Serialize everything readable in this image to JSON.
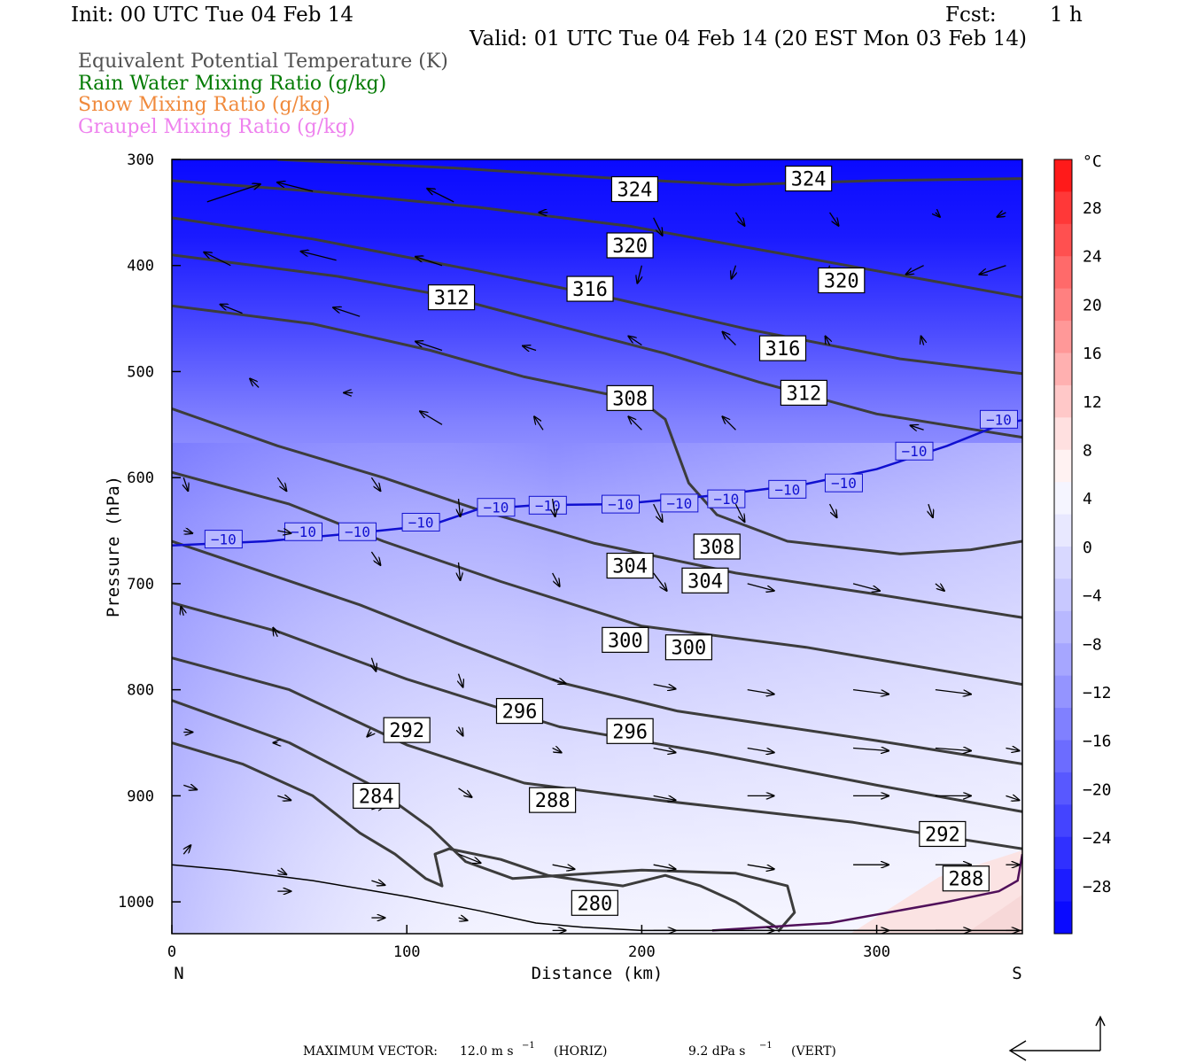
{
  "header": {
    "init": "Init: 00 UTC Tue 04 Feb 14",
    "fcst_label": "Fcst:",
    "fcst_value": "1 h",
    "valid": "Valid: 01 UTC Tue 04 Feb 14 (20 EST Mon 03 Feb 14)"
  },
  "legend": [
    {
      "label": "Equivalent Potential Temperature (K)",
      "color": "#505050"
    },
    {
      "label": "Rain Water Mixing Ratio (g/kg)",
      "color": "#007a00"
    },
    {
      "label": "Snow Mixing Ratio (g/kg)",
      "color": "#f08a3c"
    },
    {
      "label": "Graupel Mixing Ratio (g/kg)",
      "color": "#ee82ee"
    }
  ],
  "chart_data": {
    "type": "cross-section",
    "xlabel": "Distance (km)",
    "ylabel": "Pressure (hPa)",
    "x_ticks": [
      0,
      100,
      200,
      300
    ],
    "x_range": [
      0,
      362
    ],
    "y_ticks": [
      300,
      400,
      500,
      600,
      700,
      800,
      900,
      1000
    ],
    "y_range": [
      300,
      1030
    ],
    "left_end": "N",
    "right_end": "S",
    "colorbar": {
      "unit": "°C",
      "labels": [
        "28",
        "24",
        "20",
        "16",
        "12",
        "8",
        "4",
        "0",
        "−4",
        "−8",
        "−12",
        "−16",
        "−20",
        "−24",
        "−28"
      ],
      "colors": [
        "#ff1a1a",
        "#ff3838",
        "#ff5050",
        "#ff6a6a",
        "#ff8080",
        "#ff9898",
        "#ffb0b0",
        "#ffc8c8",
        "#ffe0e0",
        "#fff2f2",
        "#f5f5ff",
        "#e8e8ff",
        "#d8d8ff",
        "#c8c8ff",
        "#b8b8ff",
        "#a6a6ff",
        "#9494ff",
        "#8080ff",
        "#6c6cff",
        "#5858ff",
        "#4444ff",
        "#3030ff",
        "#1c1cff",
        "#0a0aff"
      ]
    },
    "theta_e_contours": [
      {
        "value": 324,
        "points": [
          [
            45,
            300
          ],
          [
            120,
            308
          ],
          [
            190,
            318
          ],
          [
            240,
            324
          ],
          [
            300,
            320
          ],
          [
            362,
            318
          ]
        ]
      },
      {
        "value": 320,
        "points": [
          [
            0,
            320
          ],
          [
            60,
            330
          ],
          [
            130,
            345
          ],
          [
            195,
            363
          ],
          [
            270,
            393
          ],
          [
            362,
            430
          ]
        ]
      },
      {
        "value": 316,
        "points": [
          [
            0,
            355
          ],
          [
            60,
            375
          ],
          [
            130,
            405
          ],
          [
            190,
            432
          ],
          [
            245,
            460
          ],
          [
            310,
            488
          ],
          [
            362,
            502
          ]
        ]
      },
      {
        "value": 312,
        "points": [
          [
            0,
            390
          ],
          [
            70,
            410
          ],
          [
            115,
            428
          ],
          [
            170,
            460
          ],
          [
            210,
            483
          ],
          [
            250,
            510
          ],
          [
            300,
            540
          ],
          [
            362,
            562
          ]
        ]
      },
      {
        "value": 308,
        "points": [
          [
            0,
            438
          ],
          [
            60,
            455
          ],
          [
            110,
            480
          ],
          [
            150,
            505
          ],
          [
            200,
            528
          ],
          [
            210,
            545
          ],
          [
            220,
            605
          ],
          [
            232,
            635
          ],
          [
            262,
            660
          ],
          [
            310,
            672
          ],
          [
            340,
            668
          ],
          [
            362,
            660
          ]
        ]
      },
      {
        "value": 304,
        "points": [
          [
            0,
            535
          ],
          [
            45,
            570
          ],
          [
            90,
            600
          ],
          [
            130,
            630
          ],
          [
            180,
            662
          ],
          [
            240,
            690
          ],
          [
            300,
            710
          ],
          [
            362,
            732
          ]
        ]
      },
      {
        "value": 300,
        "points": [
          [
            0,
            595
          ],
          [
            50,
            625
          ],
          [
            90,
            660
          ],
          [
            140,
            698
          ],
          [
            200,
            740
          ],
          [
            270,
            760
          ],
          [
            362,
            795
          ]
        ]
      },
      {
        "value": 296,
        "points": [
          [
            0,
            660
          ],
          [
            40,
            690
          ],
          [
            80,
            720
          ],
          [
            120,
            755
          ],
          [
            165,
            793
          ],
          [
            215,
            820
          ],
          [
            300,
            848
          ],
          [
            362,
            870
          ]
        ]
      },
      {
        "value": 292,
        "points": [
          [
            0,
            718
          ],
          [
            45,
            745
          ],
          [
            100,
            790
          ],
          [
            165,
            835
          ],
          [
            230,
            860
          ],
          [
            300,
            890
          ],
          [
            362,
            915
          ]
        ]
      },
      {
        "value": 288,
        "points": [
          [
            0,
            770
          ],
          [
            50,
            800
          ],
          [
            100,
            852
          ],
          [
            150,
            888
          ],
          [
            210,
            905
          ],
          [
            290,
            925
          ],
          [
            362,
            950
          ]
        ]
      },
      {
        "value": 284,
        "points": [
          [
            0,
            810
          ],
          [
            50,
            850
          ],
          [
            85,
            890
          ],
          [
            110,
            930
          ],
          [
            125,
            962
          ],
          [
            145,
            978
          ],
          [
            200,
            970
          ],
          [
            240,
            973
          ],
          [
            262,
            985
          ],
          [
            265,
            1010
          ],
          [
            258,
            1028
          ]
        ]
      },
      {
        "value": 280,
        "points": [
          [
            0,
            850
          ],
          [
            30,
            870
          ],
          [
            60,
            900
          ],
          [
            80,
            935
          ],
          [
            95,
            955
          ],
          [
            108,
            978
          ],
          [
            115,
            985
          ],
          [
            112,
            955
          ],
          [
            118,
            950
          ],
          [
            140,
            960
          ],
          [
            160,
            975
          ],
          [
            175,
            980
          ],
          [
            192,
            985
          ],
          [
            210,
            975
          ],
          [
            225,
            985
          ],
          [
            240,
            1000
          ],
          [
            258,
            1025
          ]
        ]
      }
    ],
    "theta_e_labels": [
      {
        "text": "324",
        "x": 197,
        "p": 328
      },
      {
        "text": "324",
        "x": 271,
        "p": 318
      },
      {
        "text": "320",
        "x": 195,
        "p": 381
      },
      {
        "text": "320",
        "x": 285,
        "p": 414
      },
      {
        "text": "316",
        "x": 178,
        "p": 422
      },
      {
        "text": "316",
        "x": 260,
        "p": 478
      },
      {
        "text": "312",
        "x": 119,
        "p": 430
      },
      {
        "text": "312",
        "x": 269,
        "p": 520
      },
      {
        "text": "308",
        "x": 195,
        "p": 525
      },
      {
        "text": "308",
        "x": 232,
        "p": 665
      },
      {
        "text": "304",
        "x": 195,
        "p": 683
      },
      {
        "text": "304",
        "x": 227,
        "p": 697
      },
      {
        "text": "300",
        "x": 193,
        "p": 753
      },
      {
        "text": "300",
        "x": 220,
        "p": 760
      },
      {
        "text": "296",
        "x": 148,
        "p": 820
      },
      {
        "text": "296",
        "x": 195,
        "p": 839
      },
      {
        "text": "292",
        "x": 100,
        "p": 838
      },
      {
        "text": "292",
        "x": 328,
        "p": 936
      },
      {
        "text": "288",
        "x": 162,
        "p": 904
      },
      {
        "text": "288",
        "x": 338,
        "p": 978
      },
      {
        "text": "284",
        "x": 87,
        "p": 900
      },
      {
        "text": "280",
        "x": 180,
        "p": 1001
      }
    ],
    "isotherm_minus10": {
      "value": -10,
      "points": [
        [
          0,
          664
        ],
        [
          40,
          660
        ],
        [
          80,
          652
        ],
        [
          110,
          645
        ],
        [
          130,
          630
        ],
        [
          155,
          626
        ],
        [
          190,
          625
        ],
        [
          230,
          617
        ],
        [
          270,
          606
        ],
        [
          300,
          592
        ],
        [
          330,
          570
        ],
        [
          355,
          548
        ],
        [
          362,
          546
        ]
      ],
      "labels": [
        [
          22,
          658
        ],
        [
          56,
          651
        ],
        [
          79,
          651
        ],
        [
          106,
          642
        ],
        [
          138,
          628
        ],
        [
          160,
          626
        ],
        [
          191,
          625
        ],
        [
          216,
          624
        ],
        [
          236,
          620
        ],
        [
          262,
          611
        ],
        [
          286,
          605
        ],
        [
          316,
          575
        ],
        [
          352,
          545
        ]
      ]
    },
    "freezing_line": {
      "points": [
        [
          230,
          1027
        ],
        [
          280,
          1020
        ],
        [
          330,
          1000
        ],
        [
          352,
          990
        ],
        [
          360,
          980
        ],
        [
          362,
          955
        ]
      ]
    },
    "terrain": {
      "points": [
        [
          0,
          965
        ],
        [
          25,
          970
        ],
        [
          60,
          980
        ],
        [
          100,
          995
        ],
        [
          130,
          1008
        ],
        [
          155,
          1020
        ],
        [
          175,
          1024
        ],
        [
          200,
          1027
        ],
        [
          362,
          1027
        ]
      ]
    },
    "wind_vectors": [
      [
        15,
        340,
        60,
        -20
      ],
      [
        60,
        330,
        -40,
        -10
      ],
      [
        120,
        340,
        -30,
        -15
      ],
      [
        160,
        350,
        -10,
        0
      ],
      [
        205,
        355,
        10,
        20
      ],
      [
        240,
        350,
        10,
        15
      ],
      [
        280,
        350,
        10,
        15
      ],
      [
        325,
        350,
        5,
        5
      ],
      [
        355,
        350,
        -10,
        5
      ],
      [
        25,
        400,
        -30,
        -15
      ],
      [
        70,
        395,
        -40,
        -10
      ],
      [
        115,
        400,
        -30,
        -10
      ],
      [
        200,
        400,
        -5,
        20
      ],
      [
        240,
        400,
        -5,
        15
      ],
      [
        280,
        400,
        -5,
        15
      ],
      [
        320,
        400,
        -20,
        10
      ],
      [
        355,
        400,
        -30,
        10
      ],
      [
        30,
        445,
        -25,
        -10
      ],
      [
        80,
        448,
        -30,
        -10
      ],
      [
        115,
        480,
        -30,
        -10
      ],
      [
        155,
        480,
        -15,
        -5
      ],
      [
        200,
        475,
        -15,
        -10
      ],
      [
        240,
        475,
        -15,
        -15
      ],
      [
        280,
        475,
        -5,
        -10
      ],
      [
        320,
        475,
        -3,
        -10
      ],
      [
        37,
        515,
        -10,
        -10
      ],
      [
        77,
        520,
        -10,
        0
      ],
      [
        115,
        550,
        -25,
        -15
      ],
      [
        158,
        555,
        -10,
        -15
      ],
      [
        200,
        555,
        -15,
        -15
      ],
      [
        240,
        555,
        -15,
        -15
      ],
      [
        320,
        555,
        -15,
        -5
      ],
      [
        5,
        600,
        5,
        15
      ],
      [
        45,
        600,
        10,
        15
      ],
      [
        85,
        600,
        10,
        15
      ],
      [
        122,
        620,
        2,
        20
      ],
      [
        162,
        620,
        3,
        20
      ],
      [
        205,
        625,
        10,
        20
      ],
      [
        240,
        625,
        10,
        20
      ],
      [
        280,
        625,
        8,
        15
      ],
      [
        322,
        625,
        5,
        15
      ],
      [
        5,
        650,
        10,
        3
      ],
      [
        45,
        650,
        15,
        3
      ],
      [
        85,
        670,
        10,
        15
      ],
      [
        122,
        680,
        2,
        20
      ],
      [
        162,
        690,
        8,
        15
      ],
      [
        205,
        690,
        15,
        20
      ],
      [
        245,
        700,
        30,
        8
      ],
      [
        290,
        700,
        30,
        8
      ],
      [
        325,
        700,
        10,
        8
      ],
      [
        5,
        730,
        -3,
        -10
      ],
      [
        45,
        750,
        -5,
        -10
      ],
      [
        85,
        770,
        5,
        15
      ],
      [
        122,
        785,
        5,
        15
      ],
      [
        162,
        790,
        15,
        5
      ],
      [
        205,
        795,
        25,
        5
      ],
      [
        245,
        800,
        30,
        5
      ],
      [
        290,
        800,
        40,
        5
      ],
      [
        325,
        800,
        40,
        5
      ],
      [
        5,
        840,
        10,
        0
      ],
      [
        45,
        850,
        -5,
        0
      ],
      [
        85,
        840,
        -5,
        5
      ],
      [
        122,
        835,
        5,
        10
      ],
      [
        162,
        855,
        10,
        5
      ],
      [
        205,
        855,
        25,
        5
      ],
      [
        245,
        855,
        30,
        5
      ],
      [
        290,
        855,
        40,
        3
      ],
      [
        325,
        855,
        40,
        3
      ],
      [
        355,
        855,
        15,
        3
      ],
      [
        5,
        890,
        15,
        5
      ],
      [
        45,
        900,
        15,
        5
      ],
      [
        85,
        913,
        15,
        -5
      ],
      [
        122,
        893,
        15,
        10
      ],
      [
        162,
        900,
        15,
        0
      ],
      [
        205,
        900,
        25,
        5
      ],
      [
        245,
        900,
        30,
        0
      ],
      [
        290,
        900,
        40,
        0
      ],
      [
        325,
        900,
        40,
        0
      ],
      [
        355,
        900,
        15,
        5
      ],
      [
        5,
        955,
        8,
        -10
      ],
      [
        45,
        970,
        10,
        5
      ],
      [
        85,
        980,
        15,
        5
      ],
      [
        122,
        955,
        25,
        10
      ],
      [
        162,
        965,
        25,
        5
      ],
      [
        205,
        965,
        25,
        5
      ],
      [
        245,
        965,
        30,
        5
      ],
      [
        290,
        965,
        40,
        0
      ],
      [
        325,
        965,
        40,
        0
      ],
      [
        355,
        965,
        15,
        0
      ],
      [
        45,
        990,
        15,
        0
      ],
      [
        85,
        1015,
        15,
        0
      ],
      [
        122,
        1015,
        10,
        3
      ],
      [
        162,
        1027,
        15,
        0
      ],
      [
        205,
        1027,
        25,
        0
      ],
      [
        245,
        1027,
        30,
        0
      ],
      [
        290,
        1027,
        40,
        0
      ],
      [
        325,
        1027,
        40,
        0
      ],
      [
        355,
        1027,
        15,
        0
      ]
    ],
    "footer": {
      "max_vector_label": "MAXIMUM VECTOR:",
      "horiz_value": "12.0 m s",
      "horiz_exp": "−1",
      "horiz_unit": "(HORIZ)",
      "vert_value": "9.2 dPa s",
      "vert_exp": "−1",
      "vert_unit": "(VERT)"
    }
  }
}
